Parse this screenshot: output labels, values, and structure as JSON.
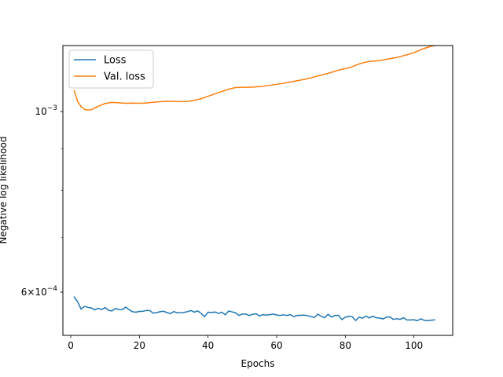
{
  "chart_data": {
    "type": "line",
    "xlabel": "Epochs",
    "ylabel": "Negative log likelihood",
    "yscale": "log",
    "xlim": [
      -2.3,
      111.3
    ],
    "ylim": [
      0.000531,
      0.001205
    ],
    "xticks": [
      0,
      20,
      40,
      60,
      80,
      100
    ],
    "xtick_labels": [
      "0",
      "20",
      "40",
      "60",
      "80",
      "100"
    ],
    "yticks": [
      0.0006,
      0.001
    ],
    "ytick_labels": [
      {
        "base": "6×10",
        "exp": "−4"
      },
      {
        "base": "10",
        "exp": "−3"
      }
    ],
    "grid": false,
    "legend": "upper-left",
    "colors": {
      "loss": "#1f77b4",
      "val_loss": "#ff7f0e"
    },
    "series": [
      {
        "name": "Loss",
        "color": "#1f77b4",
        "x": [
          1,
          2,
          3,
          4,
          5,
          6,
          7,
          8,
          9,
          10,
          11,
          12,
          13,
          14,
          15,
          16,
          17,
          18,
          19,
          20,
          21,
          22,
          23,
          24,
          25,
          26,
          27,
          28,
          29,
          30,
          31,
          32,
          33,
          34,
          35,
          36,
          37,
          38,
          39,
          40,
          41,
          42,
          43,
          44,
          45,
          46,
          47,
          48,
          49,
          50,
          51,
          52,
          53,
          54,
          55,
          56,
          57,
          58,
          59,
          60,
          61,
          62,
          63,
          64,
          65,
          66,
          67,
          68,
          69,
          70,
          71,
          72,
          73,
          74,
          75,
          76,
          77,
          78,
          79,
          80,
          81,
          82,
          83,
          84,
          85,
          86,
          87,
          88,
          89,
          90,
          91,
          92,
          93,
          94,
          95,
          96,
          97,
          98,
          99,
          100,
          101,
          102,
          103,
          104,
          105,
          106
        ],
        "y": [
          0.0005918,
          0.000584,
          0.000572,
          0.0005762,
          0.0005748,
          0.0005738,
          0.0005708,
          0.0005734,
          0.0005712,
          0.0005745,
          0.00057,
          0.000569,
          0.0005728,
          0.0005712,
          0.000571,
          0.0005752,
          0.0005708,
          0.0005678,
          0.000567,
          0.0005682,
          0.0005683,
          0.0005697,
          0.0005697,
          0.0005655,
          0.0005662,
          0.0005678,
          0.0005685,
          0.0005665,
          0.0005647,
          0.000568,
          0.000566,
          0.0005662,
          0.0005667,
          0.0005678,
          0.0005697,
          0.000567,
          0.000569,
          0.000565,
          0.0005598,
          0.000567,
          0.0005665,
          0.0005673,
          0.000565,
          0.000567,
          0.0005628,
          0.0005688,
          0.0005675,
          0.000566,
          0.0005617,
          0.000564,
          0.000564,
          0.0005617,
          0.0005636,
          0.0005645,
          0.000561,
          0.000563,
          0.0005622,
          0.000563,
          0.000564,
          0.0005626,
          0.0005617,
          0.0005628,
          0.0005617,
          0.000563,
          0.0005599,
          0.0005619,
          0.0005619,
          0.0005622,
          0.0005614,
          0.00056,
          0.0005587,
          0.0005638,
          0.0005604,
          0.0005582,
          0.0005638,
          0.0005592,
          0.0005617,
          0.000562,
          0.0005552,
          0.000559,
          0.0005605,
          0.00056,
          0.0005538,
          0.000559,
          0.0005574,
          0.0005607,
          0.0005578,
          0.0005606,
          0.0005582,
          0.0005576,
          0.0005563,
          0.000559,
          0.0005596,
          0.0005555,
          0.0005566,
          0.0005556,
          0.0005581,
          0.0005547,
          0.0005547,
          0.000555,
          0.0005536,
          0.0005565,
          0.0005541,
          0.0005536,
          0.0005544,
          0.0005548
        ]
      },
      {
        "name": "Val. loss",
        "color": "#ff7f0e",
        "x": [
          1,
          2,
          3,
          4,
          5,
          6,
          8,
          10,
          12,
          14,
          16,
          18,
          20,
          22,
          24,
          26,
          28,
          30,
          32,
          34,
          36,
          38,
          40,
          42,
          44,
          46,
          48,
          50,
          52,
          54,
          56,
          58,
          60,
          62,
          64,
          66,
          68,
          70,
          72,
          74,
          76,
          78,
          80,
          82,
          84,
          86,
          88,
          90,
          92,
          94,
          96,
          98,
          100,
          102,
          104,
          106
        ],
        "y": [
          0.001061,
          0.001029,
          0.001014,
          0.001006,
          0.001004,
          0.001005,
          0.001015,
          0.001023,
          0.001026,
          0.001025,
          0.0010235,
          0.001024,
          0.0010235,
          0.0010245,
          0.0010265,
          0.001028,
          0.0010295,
          0.001029,
          0.0010285,
          0.001029,
          0.001032,
          0.001037,
          0.001044,
          0.001051,
          0.001058,
          0.001065,
          0.00107,
          0.001071,
          0.001071,
          0.001072,
          0.001074,
          0.001077,
          0.00108,
          0.001083,
          0.001087,
          0.001091,
          0.001095,
          0.0011,
          0.001106,
          0.001111,
          0.001117,
          0.001124,
          0.001129,
          0.001135,
          0.001144,
          0.00115,
          0.001153,
          0.001155,
          0.001159,
          0.001163,
          0.001168,
          0.001174,
          0.001181,
          0.001191,
          0.001199,
          0.001205
        ]
      }
    ]
  }
}
